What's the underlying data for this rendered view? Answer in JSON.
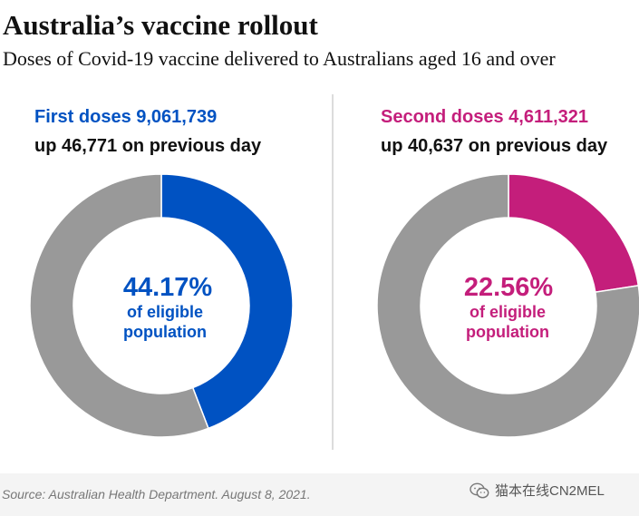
{
  "title": "Australia’s vaccine rollout",
  "subtitle": "Doses of Covid-19 vaccine delivered to Australians aged 16 and over",
  "panels": [
    {
      "heading": "First doses 9,061,739",
      "change": "up 46,771 on previous day",
      "percent_label": "44.17%",
      "caption_line1": "of eligible",
      "caption_line2": "population",
      "color": "#0052c2"
    },
    {
      "heading": "Second doses 4,611,321",
      "change": "up 40,637 on previous day",
      "percent_label": "22.56%",
      "caption_line1": "of eligible",
      "caption_line2": "population",
      "color": "#c41e7b"
    }
  ],
  "rest_color": "#999999",
  "source": "Source: Australian Health Department. August 8, 2021.",
  "watermark": "猫本在线CN2MEL",
  "watermark_icon": "wechat-icon",
  "chart_data": [
    {
      "type": "pie",
      "subtype": "donut",
      "categories": [
        "Vaccinated (first dose)",
        "Remaining"
      ],
      "values": [
        44.17,
        55.83
      ],
      "unit": "%",
      "title": "First doses 9,061,739",
      "annotation": "up 46,771 on previous day"
    },
    {
      "type": "pie",
      "subtype": "donut",
      "categories": [
        "Vaccinated (second dose)",
        "Remaining"
      ],
      "values": [
        22.56,
        77.44
      ],
      "unit": "%",
      "title": "Second doses 4,611,321",
      "annotation": "up 40,637 on previous day"
    }
  ]
}
